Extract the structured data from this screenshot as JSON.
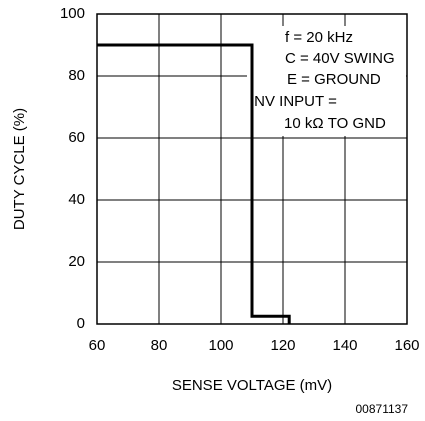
{
  "chart_data": {
    "type": "line",
    "xlabel": "SENSE VOLTAGE (mV)",
    "ylabel": "DUTY CYCLE (%)",
    "x": [
      60,
      110,
      110,
      122,
      122
    ],
    "values": [
      90,
      90,
      2.5,
      2.5,
      0
    ],
    "color": "#000000",
    "xlim": [
      60,
      160
    ],
    "xticks": [
      60,
      80,
      100,
      120,
      140,
      160
    ],
    "ylim": [
      0,
      100
    ],
    "yticks": [
      0,
      20,
      40,
      60,
      80,
      100
    ],
    "grid": true,
    "annotations": [
      "f = 20 kHz",
      "C = 40V SWING",
      "E = GROUND",
      "INV INPUT =",
      "10 kΩ  TO GND"
    ],
    "footnote": "00871137"
  }
}
